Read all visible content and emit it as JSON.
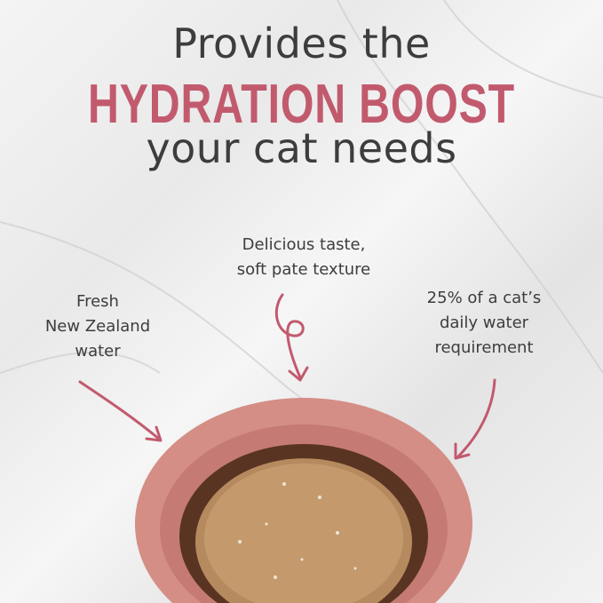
{
  "headline": {
    "line1": "Provides the",
    "line2": "HYDRATION BOOST",
    "line3": "your cat needs"
  },
  "callouts": [
    {
      "line1": "Delicious taste,",
      "line2": "soft pate texture"
    },
    {
      "line1": "Fresh",
      "line2": "New Zealand",
      "line3": "water"
    },
    {
      "line1": "25% of a cat’s",
      "line2": "daily water",
      "line3": "requirement"
    }
  ],
  "colors": {
    "accent": "#c25a6e",
    "text": "#3d3d3d",
    "bowl": "#d9958c",
    "background": "#efefef"
  },
  "icons": [
    "curly-arrow-icon",
    "curved-arrow-icon"
  ]
}
